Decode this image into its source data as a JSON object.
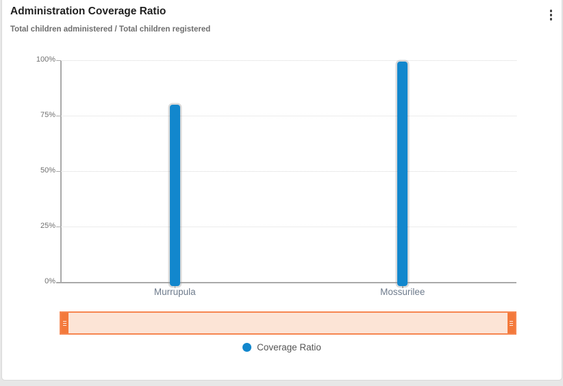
{
  "card": {
    "title": "Administration Coverage Ratio",
    "subtitle": "Total children administered / Total children registered",
    "menu_icon": "kebab-menu-icon"
  },
  "chart_data": {
    "type": "bar",
    "title": "Administration Coverage Ratio",
    "subtitle": "Total children administered / Total children registered",
    "categories": [
      "Murrupula",
      "Mossurilee"
    ],
    "series": [
      {
        "name": "Coverage Ratio",
        "values": [
          80,
          99.5
        ]
      }
    ],
    "xlabel": "",
    "ylabel": "",
    "ylim": [
      0,
      100
    ],
    "ytick_values": [
      0,
      25,
      50,
      75,
      100
    ],
    "ytick_labels": [
      "0%",
      "25%",
      "50%",
      "75%",
      "100%"
    ],
    "grid": "horizontal-dotted",
    "legend": {
      "position": "bottom-center",
      "entries": [
        {
          "label": "Coverage Ratio",
          "color": "#1287cd"
        }
      ]
    },
    "has_range_scrollbar": true
  },
  "colors": {
    "bar_fill": "#1287cd",
    "scrollbar_border": "#f6854f",
    "scrollbar_fill": "#fce4d6",
    "scrollbar_grip": "#f3793b",
    "axis_line": "#a9a9a9",
    "gridline": "#d8d8d8",
    "title_text": "#212121",
    "subtitle_text": "#6e6e6e",
    "category_text": "#6e7b8c"
  }
}
